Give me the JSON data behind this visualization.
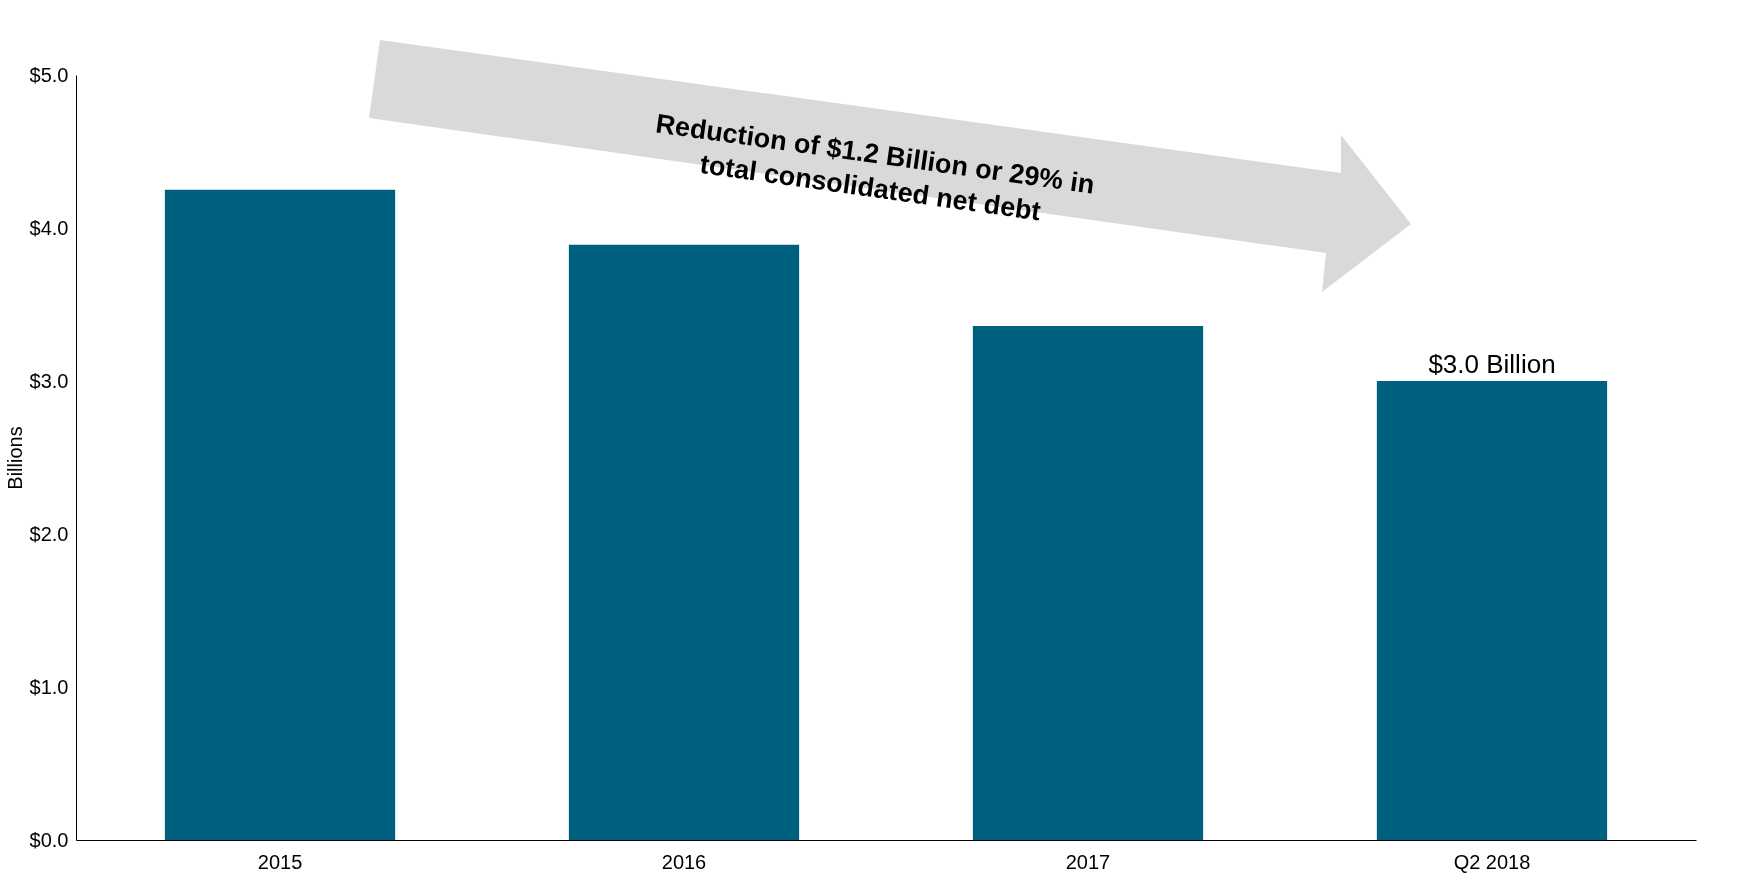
{
  "chart_data": {
    "type": "bar",
    "ylabel": "Billions",
    "categories": [
      "2015",
      "2016",
      "2017",
      "Q2 2018"
    ],
    "values": [
      4.25,
      3.89,
      3.36,
      3.0
    ],
    "value_labels": [
      null,
      null,
      null,
      "$3.0 Billion"
    ],
    "color": "#006080",
    "ylim": [
      0,
      5
    ],
    "yticks": [
      {
        "value": 0,
        "label": "$0.0"
      },
      {
        "value": 1,
        "label": "$1.0"
      },
      {
        "value": 2,
        "label": "$2.0"
      },
      {
        "value": 3,
        "label": "$3.0"
      },
      {
        "value": 4,
        "label": "$4.0"
      },
      {
        "value": 5,
        "label": "$5.0"
      }
    ],
    "grid": false,
    "annotations": [
      "Reduction of $1.2 Billion or 29% in\ntotal consolidated net debt"
    ]
  }
}
